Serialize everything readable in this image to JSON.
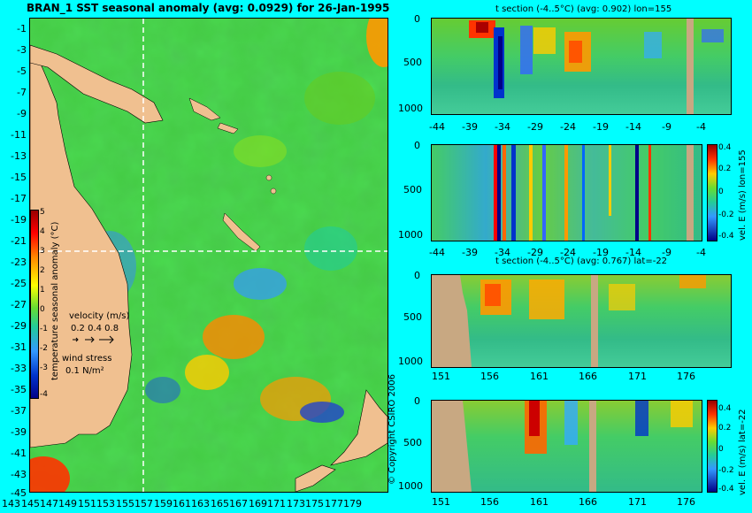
{
  "map": {
    "title": "BRAN_1 SST seasonal anomaly (avg: 0.0929) for 26-Jan-1995",
    "lat_labels": [
      "-1",
      "-3",
      "-5",
      "-7",
      "-9",
      "-11",
      "-13",
      "-15",
      "-17",
      "-19",
      "-21",
      "-23",
      "-25",
      "-27",
      "-29",
      "-31",
      "-33",
      "-35",
      "-37",
      "-39",
      "-41",
      "-43",
      "-45"
    ],
    "lon_labels": [
      "143",
      "145",
      "147",
      "149",
      "151",
      "153",
      "155",
      "157",
      "159",
      "161",
      "163",
      "165",
      "167",
      "169",
      "171",
      "173",
      "175",
      "177",
      "179"
    ],
    "colorbar_ticks": [
      "5",
      "4",
      "3",
      "2",
      "1",
      "0",
      "-1",
      "-2",
      "-3",
      "-4"
    ],
    "colorbar_label": "temperature seasonal anomaly (°C)",
    "velocity_label": "velocity (m/s)",
    "velocity_scale": "0.2 0.4 0.8",
    "wind_label": "wind stress",
    "wind_scale": "0.1 N/m²",
    "copyright": "© Copyright CSIRO 2006",
    "colors": {
      "land": "#f0c090",
      "ocean": "#44cc44",
      "background": "#00ffff"
    }
  },
  "sections": {
    "top_title": "t section (-4..5°C) (avg: 0.902) lon=155",
    "bottom_title": "t section (-4..5°C) (avg: 0.767) lat=-22",
    "depth_ticks": [
      "0",
      "500",
      "1000"
    ],
    "lat_ticks": [
      "-44",
      "-39",
      "-34",
      "-29",
      "-24",
      "-19",
      "-14",
      "-9",
      "-4"
    ],
    "lon_ticks": [
      "151",
      "156",
      "161",
      "166",
      "171",
      "176"
    ],
    "vel_label_top": "vel. E (m/s) lon=155",
    "vel_label_bottom": "vel. E (m/s) lat=-22",
    "vel_ticks_top": [
      "0.4",
      "0.2",
      "0",
      "-0.2",
      "-0.4"
    ],
    "vel_ticks_bottom": [
      "0.4",
      "0.2",
      "0",
      "-0.2",
      "-0.4"
    ]
  }
}
